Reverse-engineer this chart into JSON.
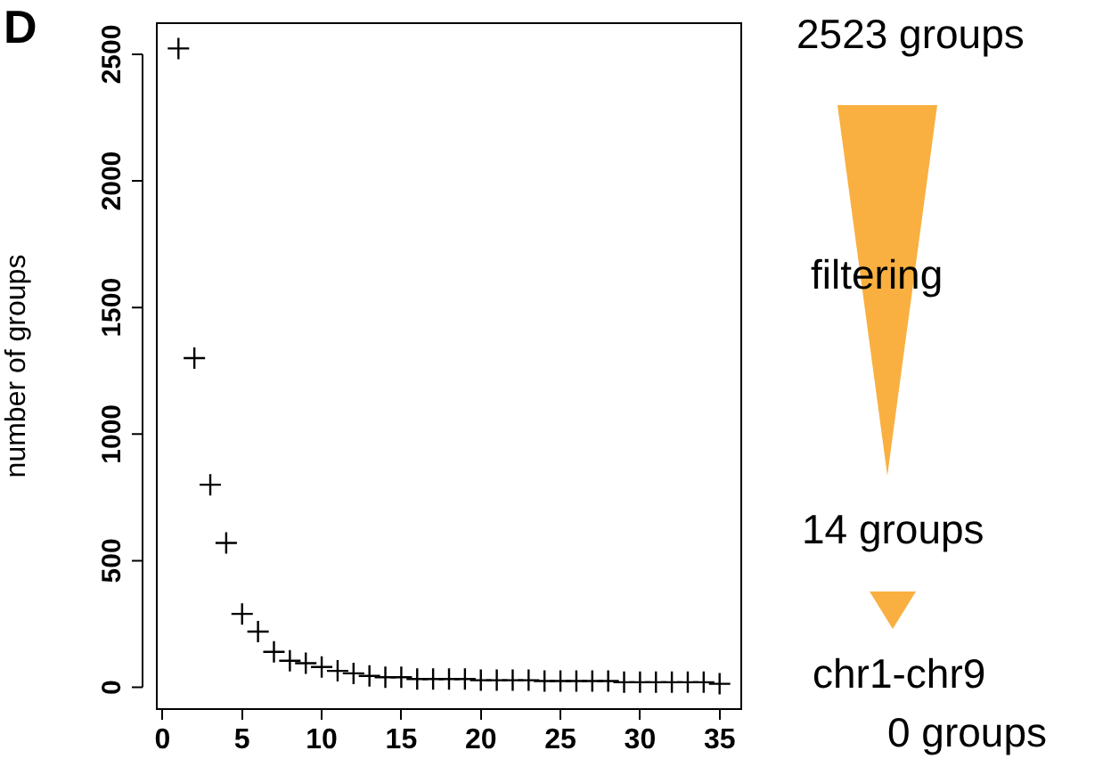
{
  "chart_data": {
    "type": "scatter",
    "ylabel": "number of groups",
    "x": [
      1,
      2,
      3,
      4,
      5,
      6,
      7,
      8,
      9,
      10,
      11,
      12,
      13,
      14,
      15,
      16,
      17,
      18,
      19,
      20,
      21,
      22,
      23,
      24,
      25,
      26,
      27,
      28,
      29,
      30,
      31,
      32,
      33,
      34,
      35
    ],
    "values": [
      2523,
      1300,
      800,
      570,
      290,
      220,
      140,
      105,
      95,
      80,
      65,
      55,
      45,
      40,
      40,
      33,
      33,
      33,
      33,
      28,
      28,
      28,
      28,
      25,
      25,
      25,
      25,
      25,
      20,
      20,
      20,
      20,
      20,
      20,
      14
    ],
    "color": "#000000",
    "marker": "cross",
    "xlim": [
      -0.36,
      36.36
    ],
    "xticks": [
      0,
      5,
      10,
      15,
      20,
      25,
      30,
      35
    ],
    "ylim": [
      -86,
      2623
    ],
    "yticks": [
      0,
      500,
      1000,
      1500,
      2000,
      2500
    ],
    "annotations": [
      "D",
      "2523 groups",
      "filtering",
      "14 groups",
      "chr1-chr9",
      "0 groups"
    ]
  }
}
